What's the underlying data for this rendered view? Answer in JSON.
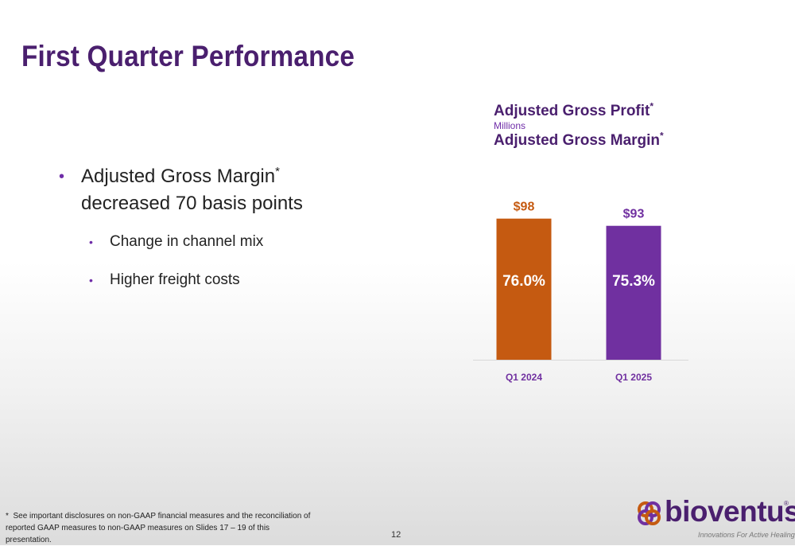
{
  "slide": {
    "title": "First Quarter Performance",
    "page_number": "12"
  },
  "bullets": {
    "main": "Adjusted Gross Margin",
    "main_sup": "*",
    "main_rest": "decreased 70 basis points",
    "sub": [
      "Change in channel mix",
      "Higher freight costs"
    ]
  },
  "chart_heading": {
    "title1": "Adjusted Gross Profit",
    "title1_sup": "*",
    "unit": "Millions",
    "title2": "Adjusted Gross Margin",
    "title2_sup": "*"
  },
  "footnote": {
    "marker": "*",
    "text": "See important disclosures on non-GAAP financial measures and the reconciliation of reported GAAP measures to non-GAAP measures on Slides 17 – 19 of this presentation."
  },
  "logo": {
    "name": "bioventus",
    "reg": "®",
    "tagline": "Innovations For Active Healing"
  },
  "chart_data": {
    "type": "bar",
    "categories": [
      "Q1 2024",
      "Q1 2025"
    ],
    "series": [
      {
        "values": [
          98,
          93
        ],
        "value_labels": [
          "$98",
          "$93"
        ],
        "margin_labels": [
          "76.0%",
          "75.3%"
        ],
        "margins": [
          76.0,
          75.3
        ]
      }
    ],
    "colors": [
      "#c55a11",
      "#7030a0"
    ],
    "label_colors": [
      "#c55a11",
      "#7030a0"
    ],
    "ylim": [
      0,
      105
    ],
    "grid": false,
    "legend": "none"
  }
}
